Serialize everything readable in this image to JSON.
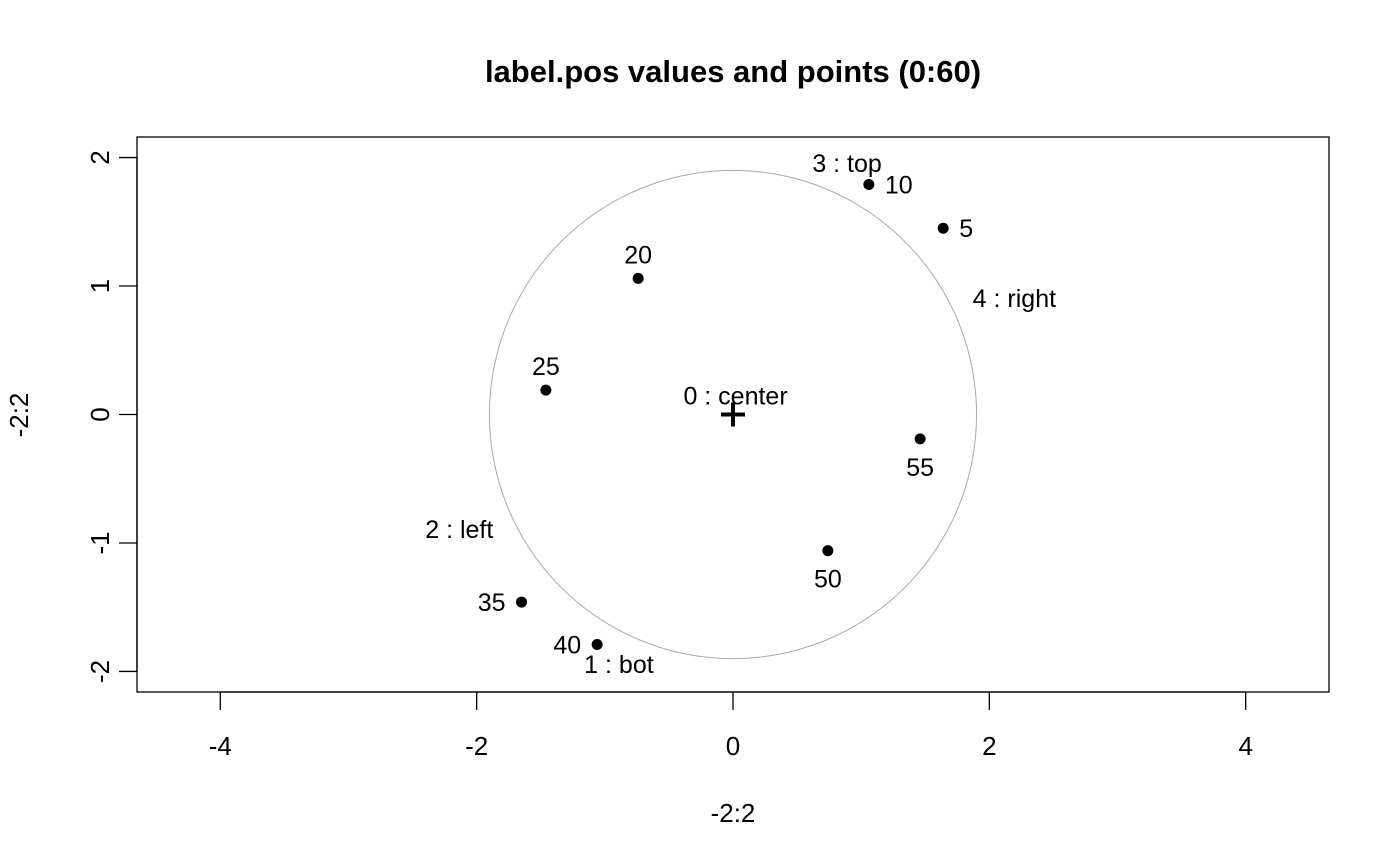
{
  "chart_data": {
    "type": "scatter",
    "title": "label.pos values and points (0:60)",
    "xlabel": "-2:2",
    "ylabel": "-2:2",
    "xlim": [
      -4.65,
      4.65
    ],
    "ylim": [
      -2.16,
      2.16
    ],
    "xticks": [
      -4,
      -2,
      0,
      2,
      4
    ],
    "yticks": [
      -2,
      -1,
      0,
      1,
      2
    ],
    "xtick_labels": [
      "-4",
      "-2",
      "0",
      "2",
      "4"
    ],
    "ytick_labels": [
      "-2",
      "-1",
      "0",
      "1",
      "2"
    ],
    "grid": false,
    "ellipse": {
      "center": [
        0,
        0
      ],
      "color": "#aaaaaa"
    },
    "center_marker": {
      "x": 0,
      "y": 0,
      "symbol": "+"
    },
    "points": [
      {
        "label": "5",
        "x": 1.64,
        "y": 1.45,
        "pos": "right"
      },
      {
        "label": "10",
        "x": 1.06,
        "y": 1.79,
        "pos": "right"
      },
      {
        "label": "20",
        "x": -0.74,
        "y": 1.06,
        "pos": "top"
      },
      {
        "label": "25",
        "x": -1.46,
        "y": 0.19,
        "pos": "top"
      },
      {
        "label": "35",
        "x": -1.65,
        "y": -1.46,
        "pos": "left"
      },
      {
        "label": "40",
        "x": -1.06,
        "y": -1.79,
        "pos": "left"
      },
      {
        "label": "50",
        "x": 0.74,
        "y": -1.06,
        "pos": "bottom"
      },
      {
        "label": "55",
        "x": 1.46,
        "y": -0.19,
        "pos": "bottom"
      }
    ],
    "annotations": [
      {
        "text": "0 : center",
        "x": 0.02,
        "y": 0.14,
        "anchor": "middle"
      },
      {
        "text": "1 : bot",
        "x": -0.89,
        "y": -1.95,
        "anchor": "middle"
      },
      {
        "text": "2 : left",
        "x": -1.87,
        "y": -0.9,
        "anchor": "end"
      },
      {
        "text": "3 : top",
        "x": 0.89,
        "y": 1.95,
        "anchor": "middle"
      },
      {
        "text": "4 : right",
        "x": 1.87,
        "y": 0.9,
        "anchor": "start"
      }
    ]
  }
}
